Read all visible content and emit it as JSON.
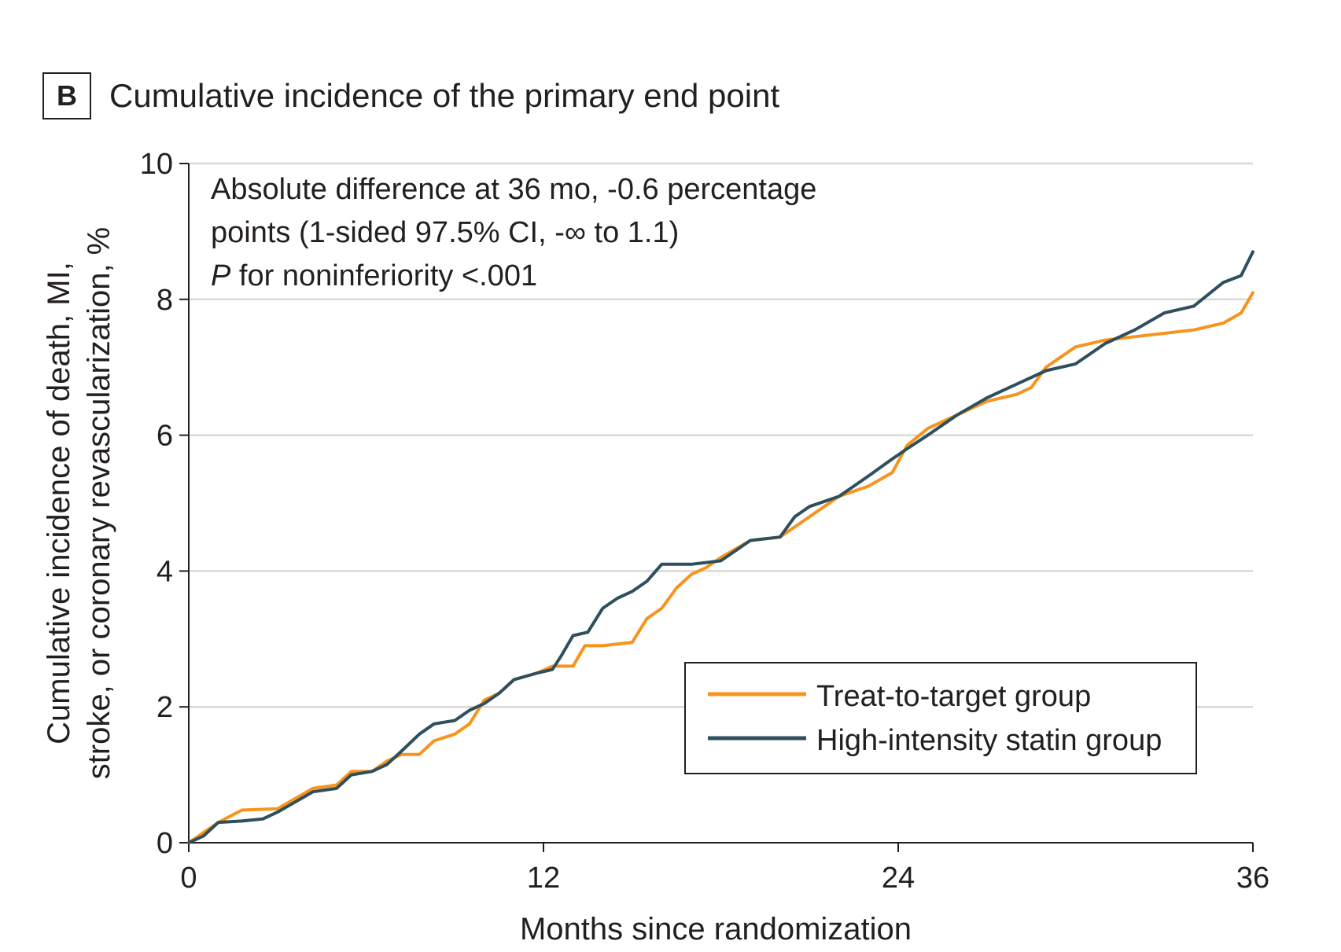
{
  "panel_label": "B",
  "chart_data": {
    "type": "line",
    "title": "Cumulative incidence of the primary end point",
    "xlabel": "Months since randomization",
    "ylabel_lines": [
      "Cumulative incidence of death, MI,",
      "stroke, or coronary revascularization, %"
    ],
    "xlim": [
      0,
      36
    ],
    "ylim": [
      0,
      10
    ],
    "xticks": [
      0,
      12,
      24,
      36
    ],
    "yticks": [
      0,
      2,
      4,
      6,
      8,
      10
    ],
    "grid": "horizontal",
    "legend_position": "bottom-right",
    "annotation": {
      "line1": "Absolute difference at 36 mo, -0.6 percentage",
      "line2": "points (1-sided 97.5% CI, -∞ to 1.1)",
      "line3_italic": "P",
      "line3_rest": " for noninferiority <.001"
    },
    "series": [
      {
        "name": "Treat-to-target group",
        "color": "#f7941d",
        "x": [
          0,
          0.5,
          1,
          1.8,
          3,
          3.6,
          4.2,
          5,
          5.5,
          6.2,
          6.7,
          7.2,
          7.8,
          8.3,
          9,
          9.5,
          10,
          10.5,
          11,
          11.8,
          12.3,
          13,
          13.4,
          14,
          15,
          15.5,
          16,
          16.5,
          17,
          17.5,
          18,
          19,
          20,
          21,
          22,
          23,
          23.8,
          24.3,
          25,
          26,
          27,
          28,
          28.5,
          29,
          30,
          31,
          32,
          33,
          34,
          35,
          35.6,
          36
        ],
        "y": [
          0,
          0.15,
          0.3,
          0.48,
          0.5,
          0.65,
          0.8,
          0.85,
          1.05,
          1.05,
          1.2,
          1.3,
          1.3,
          1.5,
          1.6,
          1.75,
          2.1,
          2.2,
          2.4,
          2.5,
          2.6,
          2.6,
          2.9,
          2.9,
          2.95,
          3.3,
          3.45,
          3.75,
          3.95,
          4.05,
          4.2,
          4.45,
          4.5,
          4.8,
          5.1,
          5.25,
          5.45,
          5.85,
          6.1,
          6.3,
          6.5,
          6.6,
          6.7,
          7.0,
          7.3,
          7.4,
          7.45,
          7.5,
          7.55,
          7.65,
          7.8,
          8.1
        ]
      },
      {
        "name": "High-intensity statin group",
        "color": "#2d4f5e",
        "x": [
          0,
          0.5,
          1,
          1.8,
          2.5,
          3,
          3.6,
          4.2,
          5,
          5.5,
          6.2,
          6.7,
          7.2,
          7.8,
          8.3,
          9,
          9.5,
          10,
          10.5,
          11,
          11.8,
          12.3,
          12.6,
          13,
          13.5,
          14,
          14.5,
          15,
          15.5,
          16,
          17,
          18,
          19,
          20,
          20.5,
          21,
          22,
          23,
          23.8,
          24.3,
          25,
          26,
          27,
          28,
          29,
          30,
          31,
          32,
          33,
          34,
          35,
          35.6,
          36
        ],
        "y": [
          0,
          0.1,
          0.3,
          0.32,
          0.35,
          0.45,
          0.6,
          0.75,
          0.8,
          1.0,
          1.05,
          1.15,
          1.35,
          1.6,
          1.75,
          1.8,
          1.95,
          2.05,
          2.2,
          2.4,
          2.5,
          2.55,
          2.75,
          3.05,
          3.1,
          3.45,
          3.6,
          3.7,
          3.85,
          4.1,
          4.1,
          4.15,
          4.45,
          4.5,
          4.8,
          4.95,
          5.1,
          5.4,
          5.65,
          5.8,
          6.0,
          6.3,
          6.55,
          6.75,
          6.95,
          7.05,
          7.35,
          7.55,
          7.8,
          7.9,
          8.25,
          8.35,
          8.7
        ]
      }
    ]
  }
}
